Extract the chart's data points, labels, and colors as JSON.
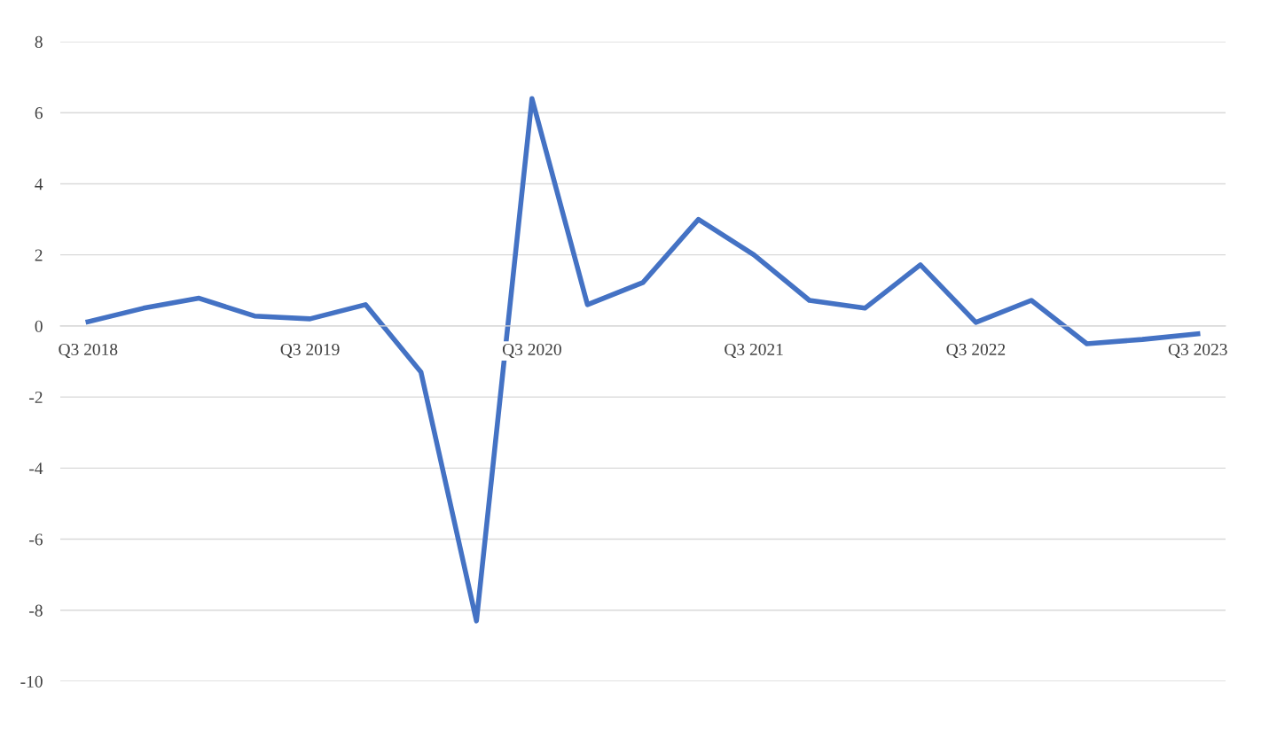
{
  "chart_data": {
    "type": "line",
    "categories": [
      "Q3 2018",
      null,
      null,
      null,
      "Q3 2019",
      null,
      null,
      null,
      "Q3 2020",
      null,
      null,
      null,
      "Q3 2021",
      null,
      null,
      null,
      "Q3 2022",
      null,
      null,
      null,
      "Q3 2023"
    ],
    "series": [
      {
        "color": "#4472c4",
        "values": [
          0.12,
          0.5,
          0.78,
          0.28,
          0.2,
          0.6,
          -1.3,
          -8.3,
          6.4,
          0.6,
          1.22,
          3.0,
          2.0,
          0.72,
          0.5,
          1.72,
          0.1,
          0.72,
          -0.5,
          -0.38,
          -0.22
        ]
      }
    ],
    "ylim": [
      -10,
      8
    ],
    "yticks": [
      -10,
      -8,
      -6,
      -4,
      -2,
      0,
      2,
      4,
      6,
      8
    ],
    "grid": "y",
    "legend": false,
    "marker": "none",
    "line_style": "solid"
  }
}
